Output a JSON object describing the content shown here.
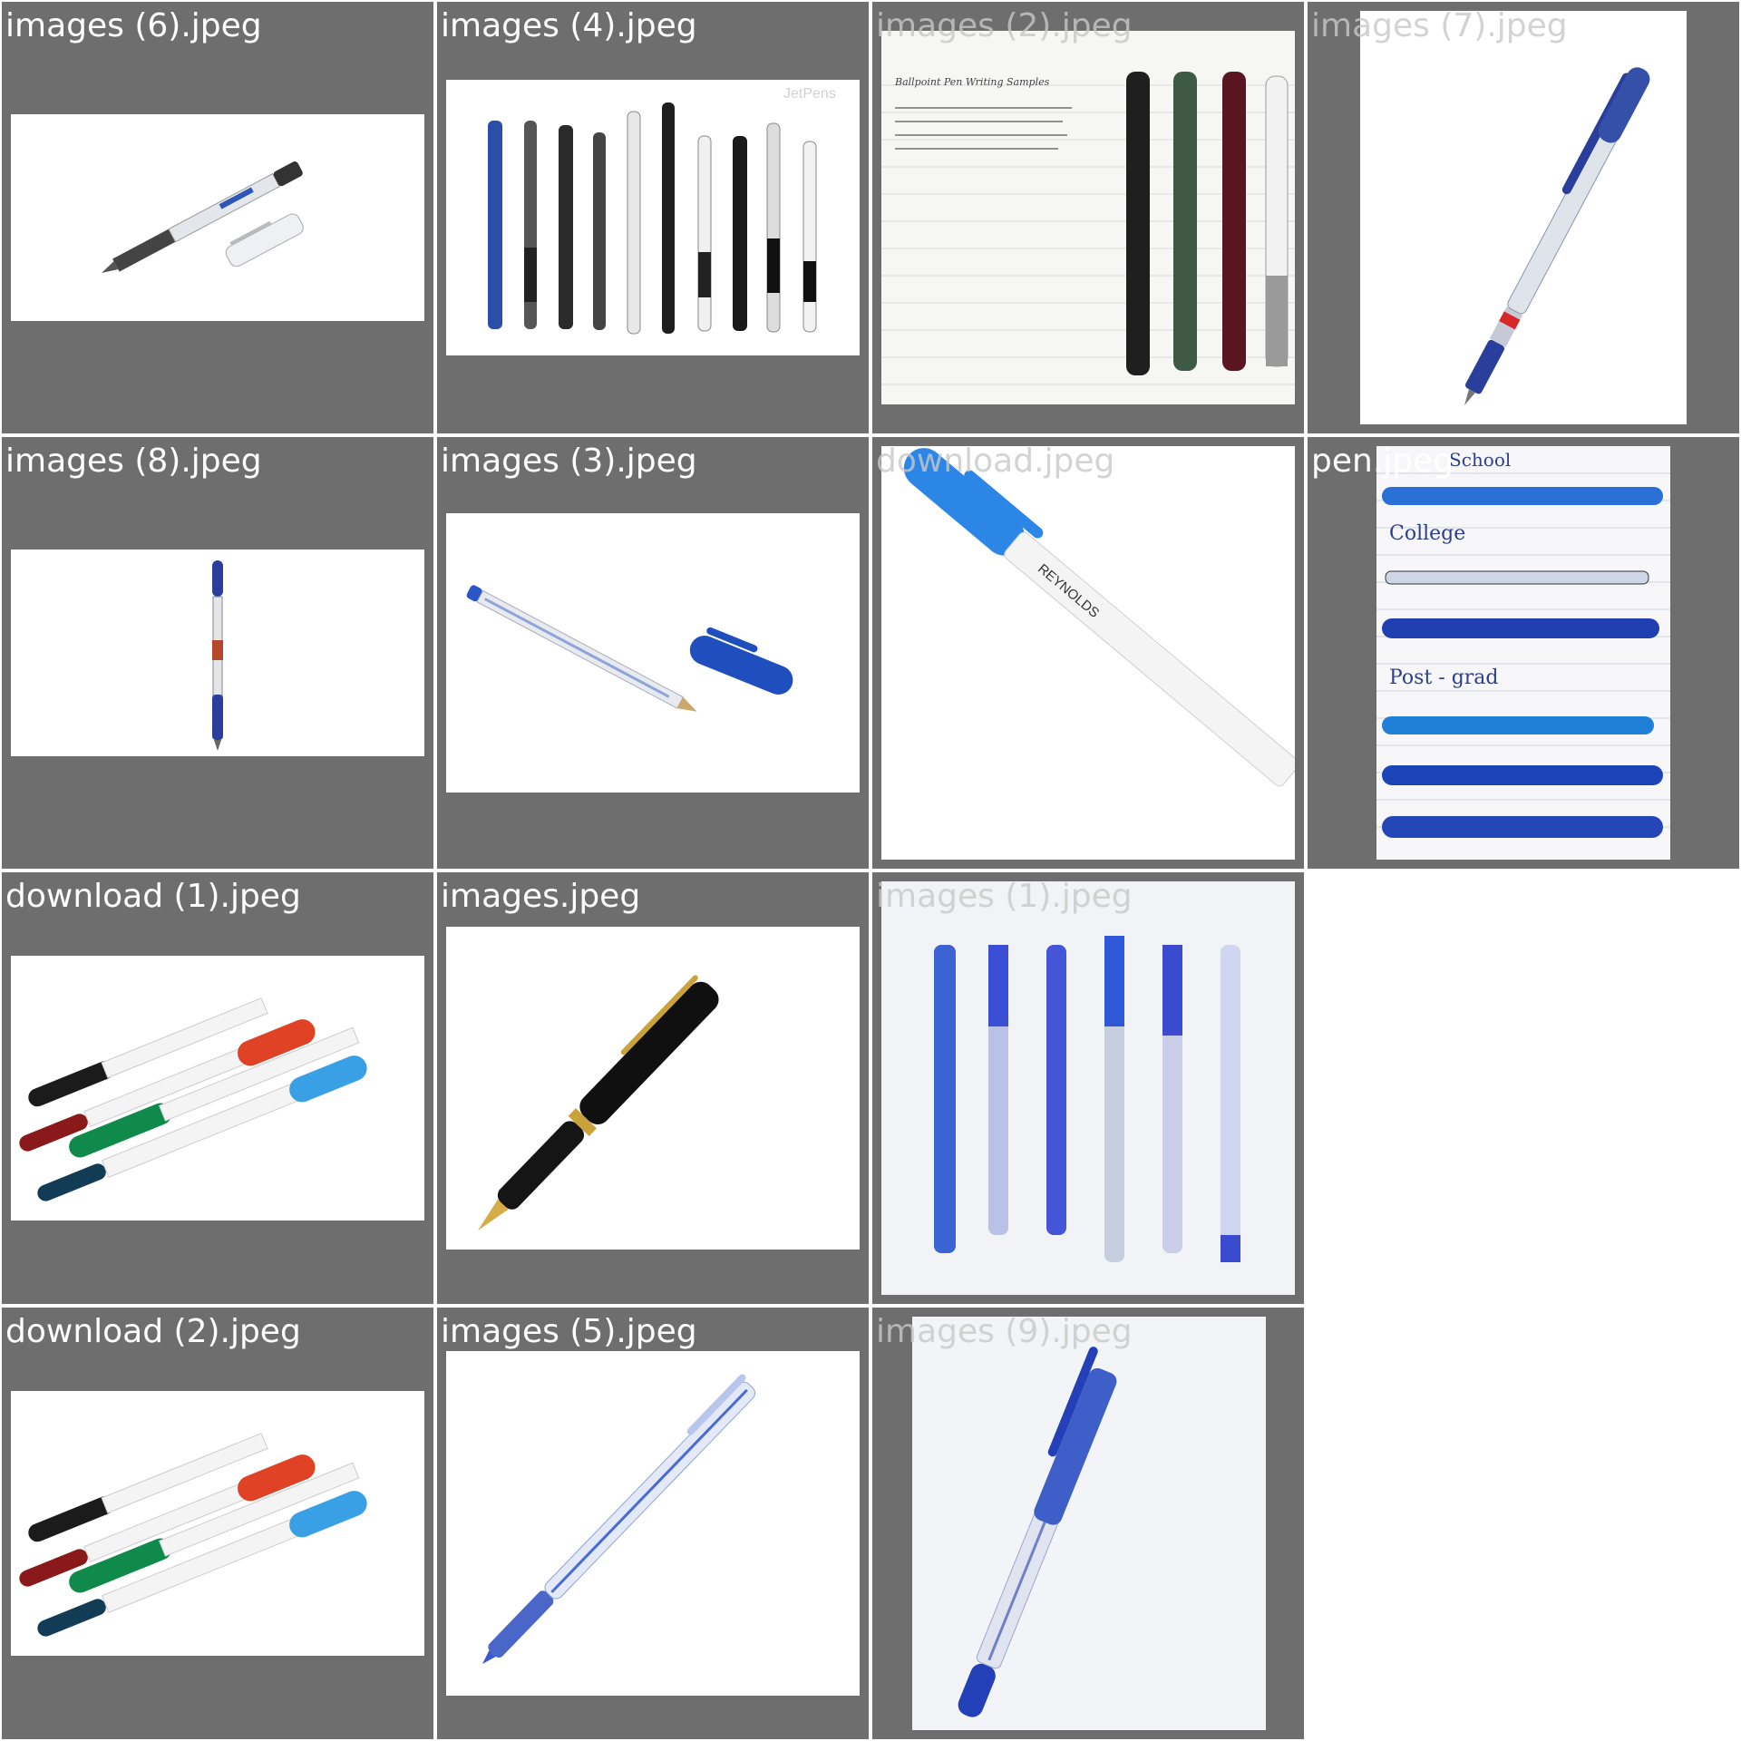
{
  "tiles": [
    {
      "filename": "images (6).jpeg"
    },
    {
      "filename": "images (4).jpeg"
    },
    {
      "filename": "images (2).jpeg"
    },
    {
      "filename": "images (7).jpeg"
    },
    {
      "filename": "images (8).jpeg"
    },
    {
      "filename": "images (3).jpeg"
    },
    {
      "filename": "download.jpeg"
    },
    {
      "filename": "pen.jpeg"
    },
    {
      "filename": "download (1).jpeg"
    },
    {
      "filename": "images.jpeg"
    },
    {
      "filename": "images (1).jpeg"
    },
    {
      "filename": "download (2).jpeg"
    },
    {
      "filename": "images (5).jpeg"
    },
    {
      "filename": "images (9).jpeg"
    }
  ],
  "watermarks": {
    "jetpens": "JetPens"
  },
  "handwriting": {
    "note_title": "Ballpoint Pen Writing Samples",
    "label_1": "School",
    "label_2": "College",
    "label_3": "Post - grad"
  },
  "pen_brand_text": "REYNOLDS"
}
